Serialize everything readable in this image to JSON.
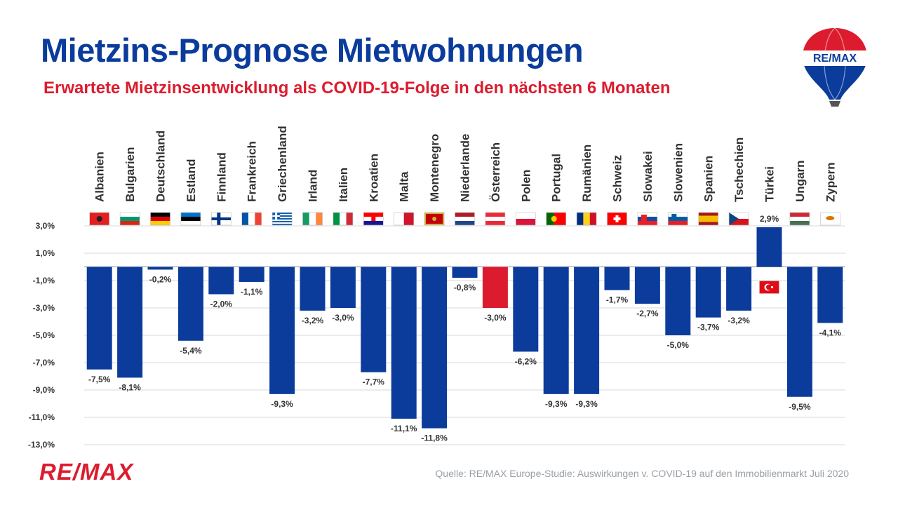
{
  "header": {
    "title": "Mietzins-Prognose Mietwohnungen",
    "subtitle": "Erwartete Mietzinsentwicklung als COVID-19-Folge in den nächsten 6 Monaten"
  },
  "footer": {
    "source": "Quelle: RE/MAX Europe-Studie:  Auswirkungen  v.  COVID-19 auf den Immobilienmarkt Juli 2020",
    "logo_text": "RE/MAX"
  },
  "brand": {
    "balloon_text": "RE/MAX",
    "primary_blue": "#0b3c9c",
    "highlight_red": "#dc1c2e"
  },
  "chart_data": {
    "type": "bar",
    "title": "Mietzins-Prognose Mietwohnungen",
    "subtitle": "Erwartete Mietzinsentwicklung als COVID-19-Folge in den nächsten 6 Monaten",
    "xlabel": "",
    "ylabel": "",
    "ylim": [
      -13,
      3
    ],
    "grid": true,
    "yticks": [
      3,
      1,
      -1,
      -3,
      -5,
      -7,
      -9,
      -11,
      -13
    ],
    "ytick_labels": [
      "3,0%",
      "1,0%",
      "-1,0%",
      "-3,0%",
      "-5,0%",
      "-7,0%",
      "-9,0%",
      "-11,0%",
      "-13,0%"
    ],
    "categories": [
      "Albanien",
      "Bulgarien",
      "Deutschland",
      "Estland",
      "Finnland",
      "Frankreich",
      "Griechenland",
      "Irland",
      "Italien",
      "Kroatien",
      "Malta",
      "Montenegro",
      "Niederlande",
      "Österreich",
      "Polen",
      "Portugal",
      "Rumänien",
      "Schweiz",
      "Slowakei",
      "Slowenien",
      "Spanien",
      "Tschechien",
      "Türkei",
      "Ungarn",
      "Zypern"
    ],
    "values": [
      -7.5,
      -8.1,
      -0.2,
      -5.4,
      -2.0,
      -1.1,
      -9.3,
      -3.2,
      -3.0,
      -7.7,
      -11.1,
      -11.8,
      -0.8,
      -3.0,
      -6.2,
      -9.3,
      -9.3,
      -1.7,
      -2.7,
      -5.0,
      -3.7,
      -3.2,
      2.9,
      -9.5,
      -4.1
    ],
    "data_labels": [
      "-7,5%",
      "-8,1%",
      "-0,2%",
      "-5,4%",
      "-2,0%",
      "-1,1%",
      "-9,3%",
      "-3,2%",
      "-3,0%",
      "-7,7%",
      "-11,1%",
      "-11,8%",
      "-0,8%",
      "-3,0%",
      "-6,2%",
      "-9,3%",
      "-9,3%",
      "-1,7%",
      "-2,7%",
      "-5,0%",
      "-3,7%",
      "-3,2%",
      "2,9%",
      "-9,5%",
      "-4,1%"
    ],
    "highlight_category": "Österreich",
    "bar_color": "#0b3c9c",
    "highlight_color": "#dc1c2e"
  }
}
